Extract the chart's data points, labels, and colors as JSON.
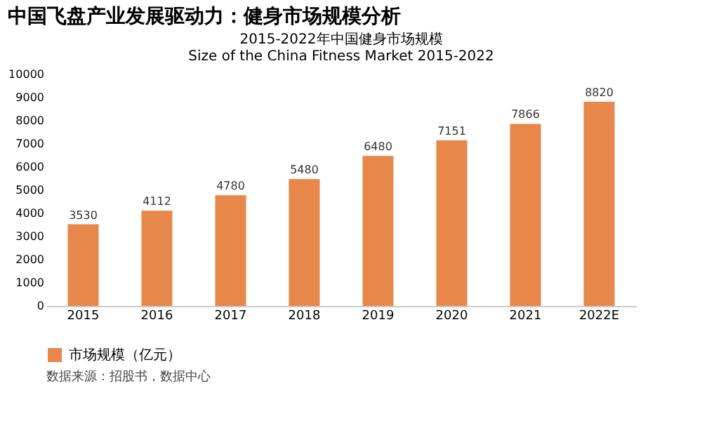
{
  "chart_data": {
    "type": "bar",
    "title": "中国飞盘产业发展驱动力：健身市场规模分析",
    "subtitle": [
      "2015-2022年中国健身市场规模",
      "Size of the China Fitness Market 2015-2022"
    ],
    "categories": [
      "2015",
      "2016",
      "2017",
      "2018",
      "2019",
      "2020",
      "2021",
      "2022E"
    ],
    "series": [
      {
        "name": "市场规模（亿元）",
        "color": "#e8874a",
        "values": [
          3530,
          4112,
          4780,
          5480,
          6480,
          7151,
          7866,
          8820
        ]
      }
    ],
    "ylim": [
      0,
      10000
    ],
    "yticks": [
      0,
      1000,
      2000,
      3000,
      4000,
      5000,
      6000,
      7000,
      8000,
      9000,
      10000
    ],
    "data_labels": true,
    "legend": "bottom",
    "grid": false,
    "annotations": [
      "数据来源：招股书，数据中心"
    ]
  }
}
